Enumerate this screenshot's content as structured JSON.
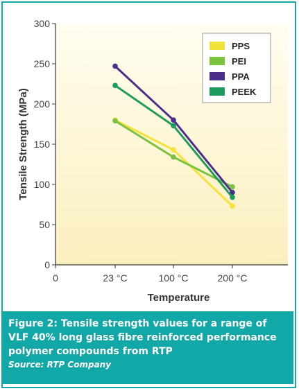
{
  "chart_data": {
    "type": "line",
    "categories": [
      "0",
      "23 °C",
      "100 °C",
      "200 °C"
    ],
    "xlabel": "Temperature",
    "ylabel": "Tensile Strength (MPa)",
    "ylim": [
      0,
      300
    ],
    "yticks": [
      0,
      50,
      100,
      150,
      200,
      250,
      300
    ],
    "grid": false,
    "legend_position": "top-right",
    "series": [
      {
        "name": "PPS",
        "color": "#f2e23a",
        "values": [
          null,
          180,
          143,
          73
        ]
      },
      {
        "name": "PEI",
        "color": "#7cc242",
        "values": [
          null,
          179,
          134,
          97
        ]
      },
      {
        "name": "PPA",
        "color": "#4a2f8a",
        "values": [
          null,
          247,
          180,
          90
        ]
      },
      {
        "name": "PEEK",
        "color": "#1e9a5c",
        "values": [
          null,
          223,
          173,
          84
        ]
      }
    ]
  },
  "caption": {
    "title": "Figure 2: Tensile strength values for a range of VLF 40% long glass fibre reinforced performance polymer compounds from RTP",
    "source": "Source: RTP Company"
  },
  "colors": {
    "frame": "#17a7a8",
    "caption_bg": "#12a8a8",
    "plot_bg_top": "#fffbe6",
    "plot_bg_bottom": "#fbf0c0"
  }
}
